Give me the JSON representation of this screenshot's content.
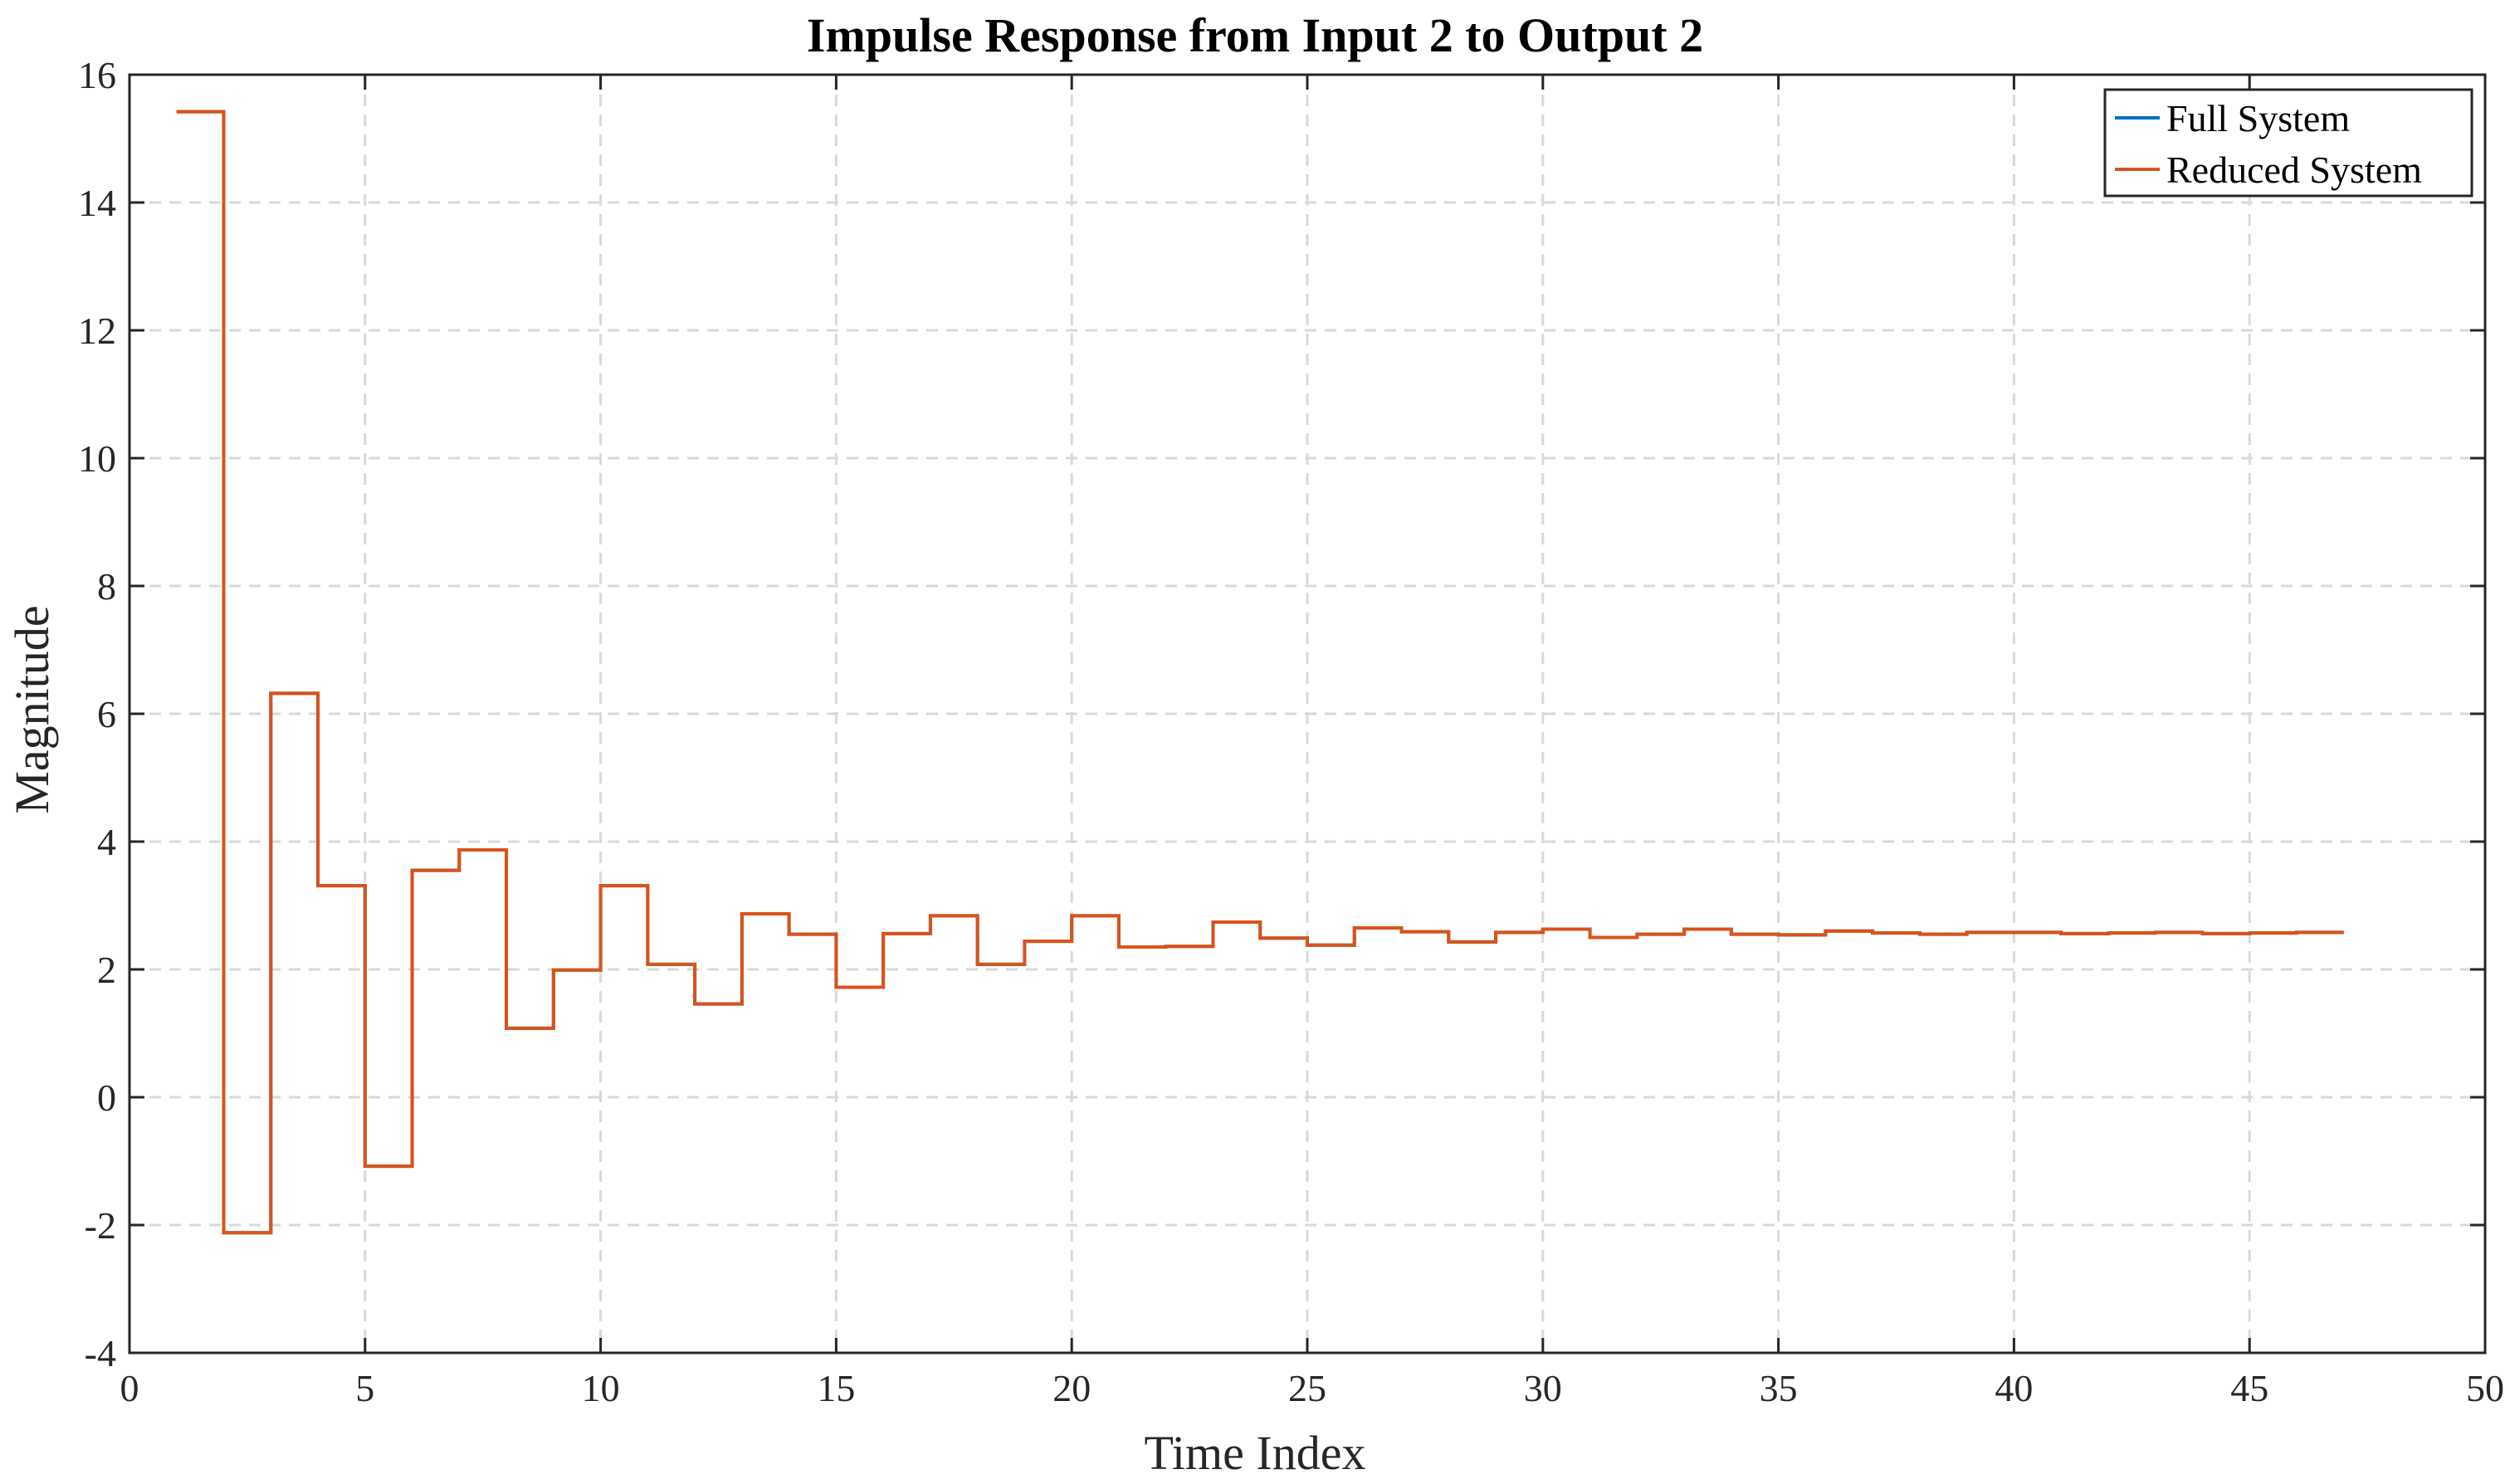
{
  "chart_data": {
    "type": "line",
    "title": "Impulse Response from Input 2 to Output 2",
    "xlabel": "Time Index",
    "ylabel": "Magnitude",
    "xlim": [
      0,
      50
    ],
    "ylim": [
      -4,
      16
    ],
    "xticks": [
      "0",
      "5",
      "10",
      "15",
      "20",
      "25",
      "30",
      "35",
      "40",
      "45",
      "50"
    ],
    "yticks": [
      "-4",
      "-2",
      "0",
      "2",
      "4",
      "6",
      "8",
      "10",
      "12",
      "14",
      "16"
    ],
    "grid": true,
    "legend_position": "top-right",
    "step": true,
    "x": [
      1,
      2,
      3,
      4,
      5,
      6,
      7,
      8,
      9,
      10,
      11,
      12,
      13,
      14,
      15,
      16,
      17,
      18,
      19,
      20,
      21,
      22,
      23,
      24,
      25,
      26,
      27,
      28,
      29,
      30,
      31,
      32,
      33,
      34,
      35,
      36,
      37,
      38,
      39,
      40,
      41,
      42,
      43,
      44,
      45,
      46,
      47
    ],
    "series": [
      {
        "name": "Full System",
        "color": "#0072bd",
        "values": [
          15.42,
          -2.12,
          6.32,
          3.31,
          -1.08,
          3.55,
          3.87,
          1.08,
          1.99,
          3.31,
          2.08,
          1.46,
          2.87,
          2.55,
          1.72,
          2.56,
          2.84,
          2.08,
          2.44,
          2.84,
          2.35,
          2.36,
          2.74,
          2.49,
          2.38,
          2.65,
          2.59,
          2.43,
          2.58,
          2.63,
          2.5,
          2.55,
          2.63,
          2.55,
          2.54,
          2.6,
          2.57,
          2.55,
          2.58,
          2.58,
          2.56,
          2.57,
          2.58,
          2.56,
          2.57,
          2.58,
          2.58
        ]
      },
      {
        "name": "Reduced System",
        "color": "#d95319",
        "values": [
          15.42,
          -2.12,
          6.32,
          3.31,
          -1.08,
          3.55,
          3.87,
          1.08,
          1.99,
          3.31,
          2.08,
          1.46,
          2.87,
          2.55,
          1.72,
          2.56,
          2.84,
          2.08,
          2.44,
          2.84,
          2.35,
          2.36,
          2.74,
          2.49,
          2.38,
          2.65,
          2.59,
          2.43,
          2.58,
          2.63,
          2.5,
          2.55,
          2.63,
          2.55,
          2.54,
          2.6,
          2.57,
          2.55,
          2.58,
          2.58,
          2.56,
          2.57,
          2.58,
          2.56,
          2.57,
          2.58,
          2.58
        ]
      }
    ]
  }
}
